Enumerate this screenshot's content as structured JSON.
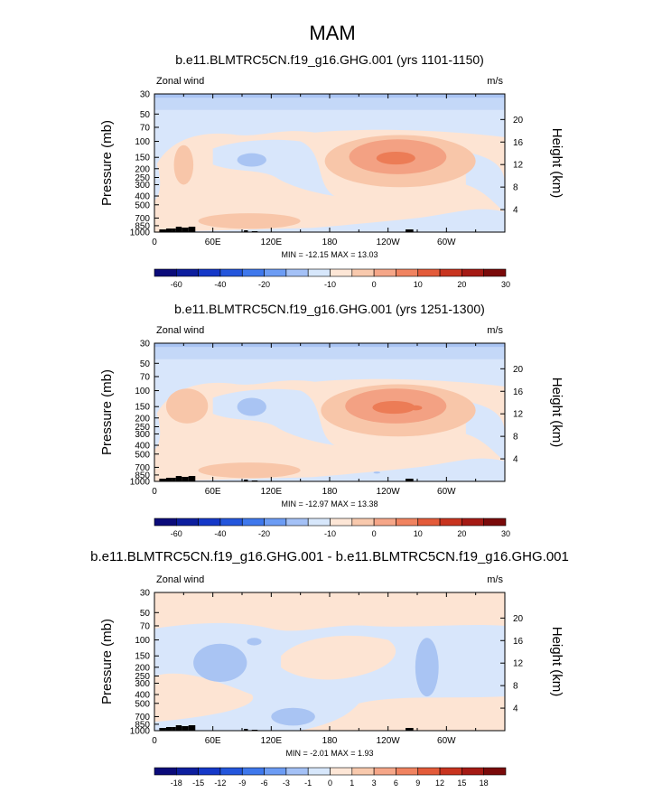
{
  "main_title": "MAM",
  "axis_common": {
    "pressure_label": "Pressure (mb)",
    "height_label": "Height (km)",
    "left_text": "Zonal wind",
    "right_text": "m/s",
    "pressure_ticks": [
      "30",
      "50",
      "70",
      "100",
      "150",
      "200",
      "250",
      "300",
      "400",
      "500",
      "700",
      "850",
      "1000"
    ],
    "pressure_values": [
      30,
      50,
      70,
      100,
      150,
      200,
      250,
      300,
      400,
      500,
      700,
      850,
      1000
    ],
    "height_ticks": [
      "4",
      "8",
      "12",
      "16",
      "20"
    ],
    "height_values": [
      4,
      8,
      12,
      16,
      20
    ],
    "x_ticks": [
      "0",
      "60E",
      "120E",
      "180",
      "120W",
      "60W"
    ],
    "x_values": [
      0,
      60,
      120,
      180,
      240,
      300
    ],
    "x_range": [
      0,
      360
    ],
    "y_range": [
      30,
      1000
    ]
  },
  "panels": [
    {
      "title": "b.e11.BLMTRC5CN.f19_g16.GHG.001 (yrs 1101-1150)",
      "stats": "MIN = -12.15   MAX =  13.03",
      "colorbar": [
        "-60",
        "-40",
        "-20",
        "-10",
        "0",
        "10",
        "20",
        "30"
      ]
    },
    {
      "title": "b.e11.BLMTRC5CN.f19_g16.GHG.001 (yrs 1251-1300)",
      "stats": "MIN = -12.97   MAX =  13.38",
      "colorbar": [
        "-60",
        "-40",
        "-20",
        "-10",
        "0",
        "10",
        "20",
        "30"
      ]
    },
    {
      "title": "b.e11.BLMTRC5CN.f19_g16.GHG.001 - b.e11.BLMTRC5CN.f19_g16.GHG.001",
      "stats": "MIN = -2.01   MAX =  1.93",
      "colorbar": [
        "-18",
        "-15",
        "-12",
        "-9",
        "-6",
        "-3",
        "-1",
        "0",
        "1",
        "3",
        "6",
        "9",
        "12",
        "15",
        "18"
      ]
    }
  ],
  "chart_data": [
    {
      "type": "heatmap",
      "title": "b.e11.BLMTRC5CN.f19_g16.GHG.001 (yrs 1101-1150)",
      "variable": "Zonal wind",
      "units": "m/s",
      "xlabel": "",
      "ylabel": "Pressure (mb)",
      "y2label": "Height (km)",
      "xlim": [
        0,
        360
      ],
      "ylim": [
        1000,
        30
      ],
      "y_scale": "log",
      "min": -12.15,
      "max": 13.03,
      "colorbar_levels": [
        -60,
        -50,
        -40,
        -30,
        -20,
        -15,
        -10,
        -5,
        0,
        5,
        10,
        15,
        20,
        25,
        30,
        35
      ],
      "features": [
        {
          "lon": [
            0,
            360
          ],
          "p": [
            30,
            60
          ],
          "value": -3
        },
        {
          "lon": [
            0,
            360
          ],
          "p": [
            60,
            1000
          ],
          "value": -1
        },
        {
          "lon": [
            150,
            360
          ],
          "p": [
            80,
            350
          ],
          "value": 3
        },
        {
          "lon": [
            175,
            330
          ],
          "p": [
            90,
            250
          ],
          "value": 8
        },
        {
          "lon": [
            240,
            255
          ],
          "p": [
            140,
            170
          ],
          "value": 12
        },
        {
          "lon": [
            20,
            40
          ],
          "p": [
            120,
            220
          ],
          "value": 3
        },
        {
          "lon": [
            0,
            90
          ],
          "p": [
            250,
            700
          ],
          "value": 2
        },
        {
          "lon": [
            45,
            150
          ],
          "p": [
            650,
            900
          ],
          "value": 5
        },
        {
          "lon": [
            85,
            115
          ],
          "p": [
            140,
            180
          ],
          "value": -6
        }
      ]
    },
    {
      "type": "heatmap",
      "title": "b.e11.BLMTRC5CN.f19_g16.GHG.001 (yrs 1251-1300)",
      "variable": "Zonal wind",
      "units": "m/s",
      "xlabel": "",
      "ylabel": "Pressure (mb)",
      "y2label": "Height (km)",
      "xlim": [
        0,
        360
      ],
      "ylim": [
        1000,
        30
      ],
      "y_scale": "log",
      "min": -12.97,
      "max": 13.38,
      "colorbar_levels": [
        -60,
        -50,
        -40,
        -30,
        -20,
        -15,
        -10,
        -5,
        0,
        5,
        10,
        15,
        20,
        25,
        30,
        35
      ],
      "features": [
        {
          "lon": [
            0,
            360
          ],
          "p": [
            30,
            60
          ],
          "value": -3
        },
        {
          "lon": [
            0,
            360
          ],
          "p": [
            60,
            1000
          ],
          "value": -1
        },
        {
          "lon": [
            150,
            360
          ],
          "p": [
            80,
            350
          ],
          "value": 3
        },
        {
          "lon": [
            175,
            330
          ],
          "p": [
            90,
            250
          ],
          "value": 8
        },
        {
          "lon": [
            235,
            260
          ],
          "p": [
            130,
            170
          ],
          "value": 12
        },
        {
          "lon": [
            15,
            50
          ],
          "p": [
            100,
            200
          ],
          "value": 3
        },
        {
          "lon": [
            0,
            90
          ],
          "p": [
            250,
            700
          ],
          "value": 2
        },
        {
          "lon": [
            40,
            150
          ],
          "p": [
            650,
            900
          ],
          "value": 5
        },
        {
          "lon": [
            85,
            115
          ],
          "p": [
            120,
            180
          ],
          "value": -6
        }
      ]
    },
    {
      "type": "heatmap",
      "title": "b.e11.BLMTRC5CN.f19_g16.GHG.001 - b.e11.BLMTRC5CN.f19_g16.GHG.001",
      "variable": "Zonal wind",
      "units": "m/s",
      "xlabel": "",
      "ylabel": "Pressure (mb)",
      "y2label": "Height (km)",
      "xlim": [
        0,
        360
      ],
      "ylim": [
        1000,
        30
      ],
      "y_scale": "log",
      "min": -2.01,
      "max": 1.93,
      "colorbar_levels": [
        -18,
        -15,
        -12,
        -9,
        -6,
        -3,
        -1,
        0,
        1,
        3,
        6,
        9,
        12,
        15,
        18
      ],
      "features": [
        {
          "lon": [
            0,
            360
          ],
          "p": [
            30,
            60
          ],
          "value": 0.5
        },
        {
          "lon": [
            0,
            360
          ],
          "p": [
            60,
            1000
          ],
          "value": -0.5
        },
        {
          "lon": [
            160,
            250
          ],
          "p": [
            90,
            250
          ],
          "value": 0.5
        },
        {
          "lon": [
            40,
            110
          ],
          "p": [
            100,
            250
          ],
          "value": -1.5
        },
        {
          "lon": [
            265,
            290
          ],
          "p": [
            100,
            400
          ],
          "value": -1.5
        },
        {
          "lon": [
            100,
            170
          ],
          "p": [
            500,
            900
          ],
          "value": -1.5
        }
      ]
    }
  ],
  "colors": {
    "neg_cmap": [
      "#0b0b7a",
      "#0d1e9e",
      "#1538c8",
      "#2456dc",
      "#3f78ec",
      "#6c9cf4",
      "#a4c1f6",
      "#d7e7fb"
    ],
    "pos_cmap": [
      "#fde6d6",
      "#f8c9ad",
      "#f5a688",
      "#f08360",
      "#e35b3a",
      "#c8341f",
      "#a51a14",
      "#7a0a0a"
    ],
    "diff_cmap": [
      "#0b0b7a",
      "#0d1e9e",
      "#1538c8",
      "#2456dc",
      "#3f78ec",
      "#6c9cf4",
      "#a4c1f6",
      "#d7e7fb",
      "#fde6d6",
      "#f8c9ad",
      "#f5a688",
      "#f08360",
      "#e35b3a",
      "#c8341f",
      "#a51a14",
      "#7a0a0a"
    ],
    "band_neg": "#d8e6fb",
    "band_neg2": "#a9c4f3",
    "band_pos": "#fde4d3",
    "band_pos2": "#f8c6a9",
    "band_pos3": "#f3a183",
    "band_pos4": "#ec7c56"
  }
}
